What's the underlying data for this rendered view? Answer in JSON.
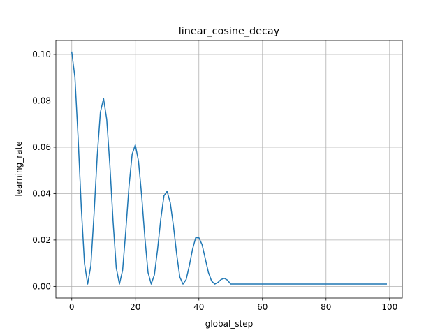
{
  "chart_data": {
    "type": "line",
    "title": "linear_cosine_decay",
    "xlabel": "global_step",
    "ylabel": "learning_rate",
    "xlim": [
      -5,
      104
    ],
    "ylim": [
      -0.005,
      0.106
    ],
    "grid": true,
    "xticks": [
      0,
      20,
      40,
      60,
      80,
      100
    ],
    "xtick_labels": [
      "0",
      "20",
      "40",
      "60",
      "80",
      "100"
    ],
    "yticks": [
      0.0,
      0.02,
      0.04,
      0.06,
      0.08,
      0.1
    ],
    "ytick_labels": [
      "0.00",
      "0.02",
      "0.04",
      "0.06",
      "0.08",
      "0.10"
    ],
    "series": [
      {
        "color": "#1f77b4",
        "x": [
          0,
          1,
          2,
          3,
          4,
          5,
          6,
          7,
          8,
          9,
          10,
          11,
          12,
          13,
          14,
          15,
          16,
          17,
          18,
          19,
          20,
          21,
          22,
          23,
          24,
          25,
          26,
          27,
          28,
          29,
          30,
          31,
          32,
          33,
          34,
          35,
          36,
          37,
          38,
          39,
          40,
          41,
          42,
          43,
          44,
          45,
          46,
          47,
          48,
          49,
          50,
          51,
          52,
          53,
          54,
          55,
          56,
          57,
          58,
          59,
          60,
          61,
          62,
          63,
          64,
          65,
          66,
          67,
          68,
          69,
          70,
          71,
          72,
          73,
          74,
          75,
          76,
          77,
          78,
          79,
          80,
          81,
          82,
          83,
          84,
          85,
          86,
          87,
          88,
          89,
          90,
          91,
          92,
          93,
          94,
          95,
          96,
          97,
          98,
          99
        ],
        "y": [
          0.101,
          0.09,
          0.064,
          0.034,
          0.01,
          0.001,
          0.009,
          0.031,
          0.056,
          0.075,
          0.081,
          0.072,
          0.052,
          0.028,
          0.008,
          0.001,
          0.007,
          0.024,
          0.043,
          0.057,
          0.061,
          0.054,
          0.039,
          0.021,
          0.006,
          0.001,
          0.005,
          0.016,
          0.029,
          0.039,
          0.041,
          0.036,
          0.026,
          0.014,
          0.004,
          0.001,
          0.003,
          0.009,
          0.016,
          0.021,
          0.021,
          0.018,
          0.012,
          0.006,
          0.0023,
          0.001,
          0.0017,
          0.003,
          0.0035,
          0.0027,
          0.001,
          0.001,
          0.001,
          0.001,
          0.001,
          0.001,
          0.001,
          0.001,
          0.001,
          0.001,
          0.001,
          0.001,
          0.001,
          0.001,
          0.001,
          0.001,
          0.001,
          0.001,
          0.001,
          0.001,
          0.001,
          0.001,
          0.001,
          0.001,
          0.001,
          0.001,
          0.001,
          0.001,
          0.001,
          0.001,
          0.001,
          0.001,
          0.001,
          0.001,
          0.001,
          0.001,
          0.001,
          0.001,
          0.001,
          0.001,
          0.001,
          0.001,
          0.001,
          0.001,
          0.001,
          0.001,
          0.001,
          0.001,
          0.001,
          0.001
        ]
      }
    ]
  }
}
